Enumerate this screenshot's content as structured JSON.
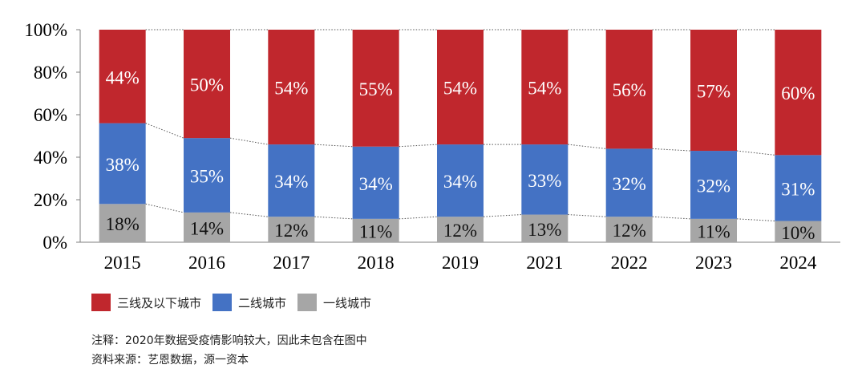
{
  "chart_data": {
    "type": "bar",
    "stacked": true,
    "percent": true,
    "categories": [
      "2015",
      "2016",
      "2017",
      "2018",
      "2019",
      "2021",
      "2022",
      "2023",
      "2024"
    ],
    "series": [
      {
        "name": "一线城市",
        "color": "#a6a6a6",
        "values": [
          18,
          14,
          12,
          11,
          12,
          13,
          12,
          11,
          10
        ],
        "labels": [
          "18%",
          "14%",
          "12%",
          "11%",
          "12%",
          "13%",
          "12%",
          "11%",
          "10%"
        ]
      },
      {
        "name": "二线城市",
        "color": "#4472c4",
        "values": [
          38,
          35,
          34,
          34,
          34,
          33,
          32,
          32,
          31
        ],
        "labels": [
          "38%",
          "35%",
          "34%",
          "34%",
          "34%",
          "33%",
          "32%",
          "32%",
          "31%"
        ]
      },
      {
        "name": "三线及以下城市",
        "color": "#c0272d",
        "values": [
          44,
          50,
          54,
          55,
          54,
          54,
          56,
          57,
          60
        ],
        "labels": [
          "44%",
          "50%",
          "54%",
          "55%",
          "54%",
          "54%",
          "56%",
          "57%",
          "60%"
        ]
      }
    ],
    "ylim": [
      0,
      100
    ],
    "yticks": [
      0,
      20,
      40,
      60,
      80,
      100
    ],
    "ytick_labels": [
      "0%",
      "20%",
      "40%",
      "60%",
      "80%",
      "100%"
    ],
    "grid": false,
    "legend_position": "bottom-left",
    "legend": [
      "三线及以下城市",
      "二线城市",
      "一线城市"
    ]
  },
  "notes": {
    "note1": "注释：2020年数据受疫情影响较大，因此未包含在图中",
    "note2": "资料来源：艺恩数据，源一资本"
  }
}
